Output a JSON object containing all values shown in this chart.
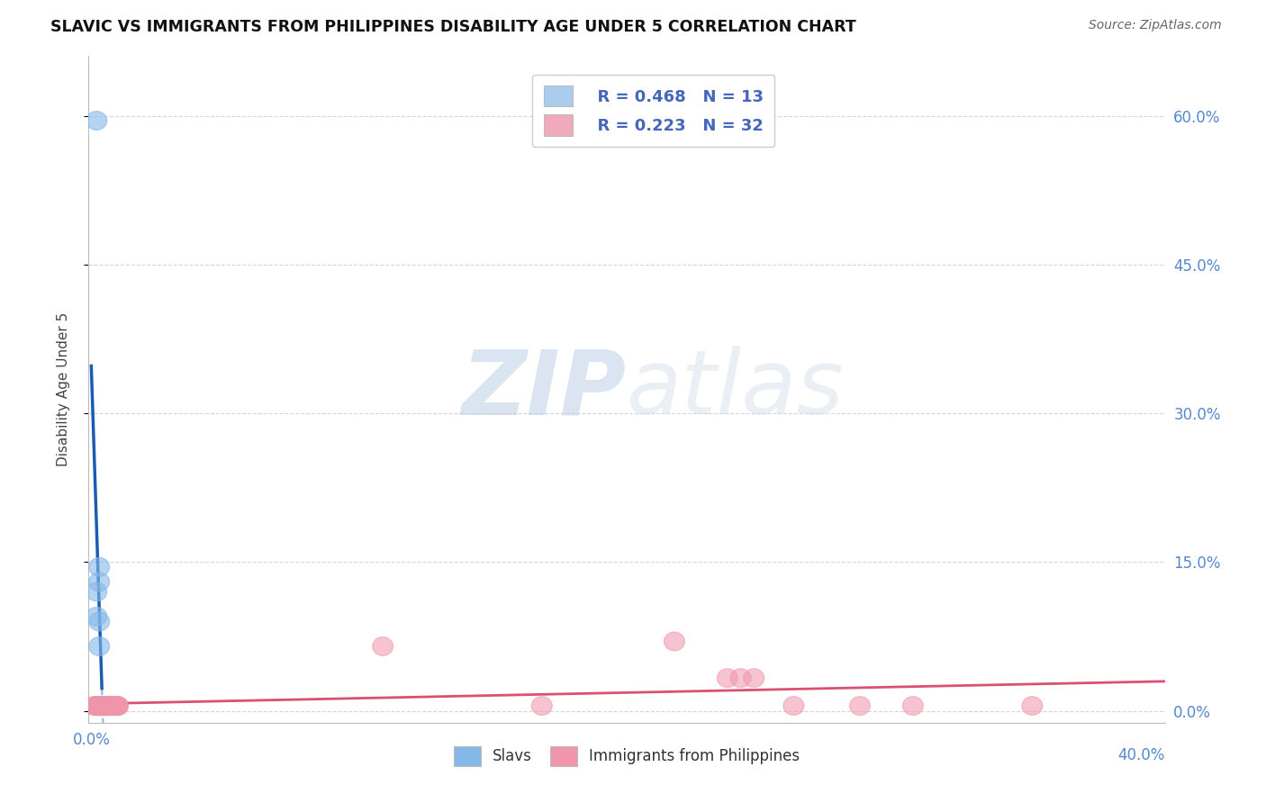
{
  "title": "SLAVIC VS IMMIGRANTS FROM PHILIPPINES DISABILITY AGE UNDER 5 CORRELATION CHART",
  "source": "Source: ZipAtlas.com",
  "ylabel": "Disability Age Under 5",
  "watermark_zip": "ZIP",
  "watermark_atlas": "atlas",
  "slavs_color": "#85b8e8",
  "slavs_edge": "#85b8e8",
  "philippines_color": "#f095aa",
  "philippines_edge": "#f095aa",
  "regression_slavs_solid": "#1a5cb0",
  "regression_slavs_dash": "#6699cc",
  "regression_phil_color": "#d95070",
  "background_color": "#ffffff",
  "grid_color": "#cccccc",
  "axis_tick_color": "#5588cc",
  "legend1_face": "#aaccee",
  "legend2_face": "#f0aabb",
  "legend_text_color": "#4466bb",
  "right_yticks": [
    0.0,
    0.15,
    0.3,
    0.45,
    0.6
  ],
  "right_yticklabels": [
    "0.0%",
    "15.0%",
    "30.0%",
    "45.0%",
    "60.0%"
  ],
  "xlim": [
    -0.001,
    0.405
  ],
  "ylim": [
    -0.012,
    0.66
  ],
  "slavs_x": [
    0.002,
    0.002,
    0.002,
    0.003,
    0.003,
    0.003,
    0.003,
    0.003,
    0.004,
    0.004,
    0.004,
    0.005,
    0.002
  ],
  "slavs_y": [
    0.595,
    0.12,
    0.095,
    0.145,
    0.13,
    0.09,
    0.065,
    0.005,
    0.005,
    0.005,
    0.005,
    0.005,
    0.005
  ],
  "phil_x": [
    0.001,
    0.002,
    0.002,
    0.003,
    0.003,
    0.003,
    0.004,
    0.004,
    0.005,
    0.005,
    0.005,
    0.006,
    0.006,
    0.007,
    0.007,
    0.007,
    0.008,
    0.008,
    0.009,
    0.01,
    0.01,
    0.01,
    0.11,
    0.17,
    0.22,
    0.24,
    0.245,
    0.25,
    0.265,
    0.29,
    0.31,
    0.355
  ],
  "phil_y": [
    0.005,
    0.005,
    0.005,
    0.005,
    0.005,
    0.005,
    0.005,
    0.005,
    0.005,
    0.005,
    0.005,
    0.005,
    0.005,
    0.005,
    0.005,
    0.005,
    0.005,
    0.005,
    0.005,
    0.005,
    0.005,
    0.005,
    0.065,
    0.005,
    0.07,
    0.033,
    0.033,
    0.033,
    0.005,
    0.005,
    0.005,
    0.005
  ]
}
